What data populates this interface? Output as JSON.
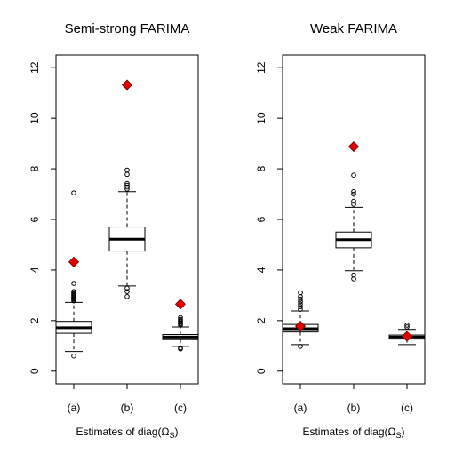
{
  "chart_data": [
    {
      "type": "boxplot",
      "title": "Semi-strong FARIMA",
      "xlabel_prefix": "Estimates of diag(",
      "xlabel_symbol": "Ω",
      "xlabel_sub": "S",
      "xlabel_suffix": ")",
      "ylim": [
        -0.5,
        12.5
      ],
      "yticks": [
        0,
        2,
        4,
        6,
        8,
        10,
        12
      ],
      "categories": [
        "(a)",
        "(b)",
        "(c)"
      ],
      "boxes": [
        {
          "q1": 1.5,
          "median": 1.72,
          "q3": 1.97,
          "whisker_low": 0.78,
          "whisker_high": 2.72,
          "outliers": [
            0.6,
            2.78,
            2.82,
            2.86,
            2.9,
            2.94,
            2.98,
            3.02,
            3.06,
            3.1,
            3.15,
            3.47,
            7.05
          ],
          "true_value": 4.32
        },
        {
          "q1": 4.75,
          "median": 5.22,
          "q3": 5.7,
          "whisker_low": 3.37,
          "whisker_high": 7.1,
          "outliers": [
            2.95,
            3.15,
            3.28,
            7.2,
            7.28,
            7.35,
            7.42,
            7.78,
            7.95
          ],
          "true_value": 11.32
        },
        {
          "q1": 1.25,
          "median": 1.35,
          "q3": 1.45,
          "whisker_low": 0.98,
          "whisker_high": 1.75,
          "outliers": [
            0.88,
            0.92,
            1.82,
            1.86,
            1.9,
            1.95,
            2.0,
            2.05,
            2.12
          ],
          "true_value": 2.65
        }
      ],
      "marker_color": "#e00000"
    },
    {
      "type": "boxplot",
      "title": "Weak FARIMA",
      "xlabel_prefix": "Estimates of diag(",
      "xlabel_symbol": "Ω",
      "xlabel_sub": "S",
      "xlabel_suffix": ")",
      "ylim": [
        -0.5,
        12.5
      ],
      "yticks": [
        0,
        2,
        4,
        6,
        8,
        10,
        12
      ],
      "categories": [
        "(a)",
        "(b)",
        "(c)"
      ],
      "boxes": [
        {
          "q1": 1.55,
          "median": 1.68,
          "q3": 1.85,
          "whisker_low": 1.05,
          "whisker_high": 2.38,
          "outliers": [
            0.98,
            2.45,
            2.55,
            2.65,
            2.75,
            2.85,
            2.95,
            3.1
          ],
          "true_value": 1.78
        },
        {
          "q1": 4.88,
          "median": 5.2,
          "q3": 5.5,
          "whisker_low": 3.97,
          "whisker_high": 6.48,
          "outliers": [
            3.65,
            3.8,
            6.6,
            6.72,
            7.0,
            7.1,
            7.75
          ],
          "true_value": 8.88
        },
        {
          "q1": 1.27,
          "median": 1.35,
          "q3": 1.43,
          "whisker_low": 1.05,
          "whisker_high": 1.65,
          "outliers": [
            1.75,
            1.82
          ],
          "true_value": 1.38
        }
      ],
      "marker_color": "#e00000"
    }
  ]
}
